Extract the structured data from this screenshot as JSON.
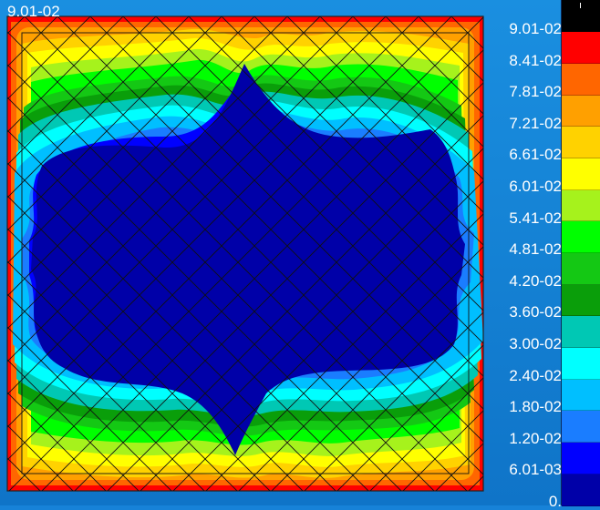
{
  "max_value_label": "9.01-02",
  "colors": {
    "background": "#1782d8",
    "mesh": "#111111"
  },
  "legend": {
    "labels": [
      "9.01-02",
      "8.41-02",
      "7.81-02",
      "7.21-02",
      "6.61-02",
      "6.01-02",
      "5.41-02",
      "4.81-02",
      "4.20-02",
      "3.60-02",
      "3.00-02",
      "2.40-02",
      "1.80-02",
      "1.20-02",
      "6.01-03",
      "0."
    ],
    "swatches": [
      "#000000",
      "#ff0000",
      "#ff6600",
      "#ffa000",
      "#ffd200",
      "#ffff00",
      "#a6f21c",
      "#00ff00",
      "#14c814",
      "#0a9e0a",
      "#00c8b4",
      "#00ffff",
      "#00bfff",
      "#1a7dff",
      "#0000ff",
      "#0000a8"
    ]
  }
}
